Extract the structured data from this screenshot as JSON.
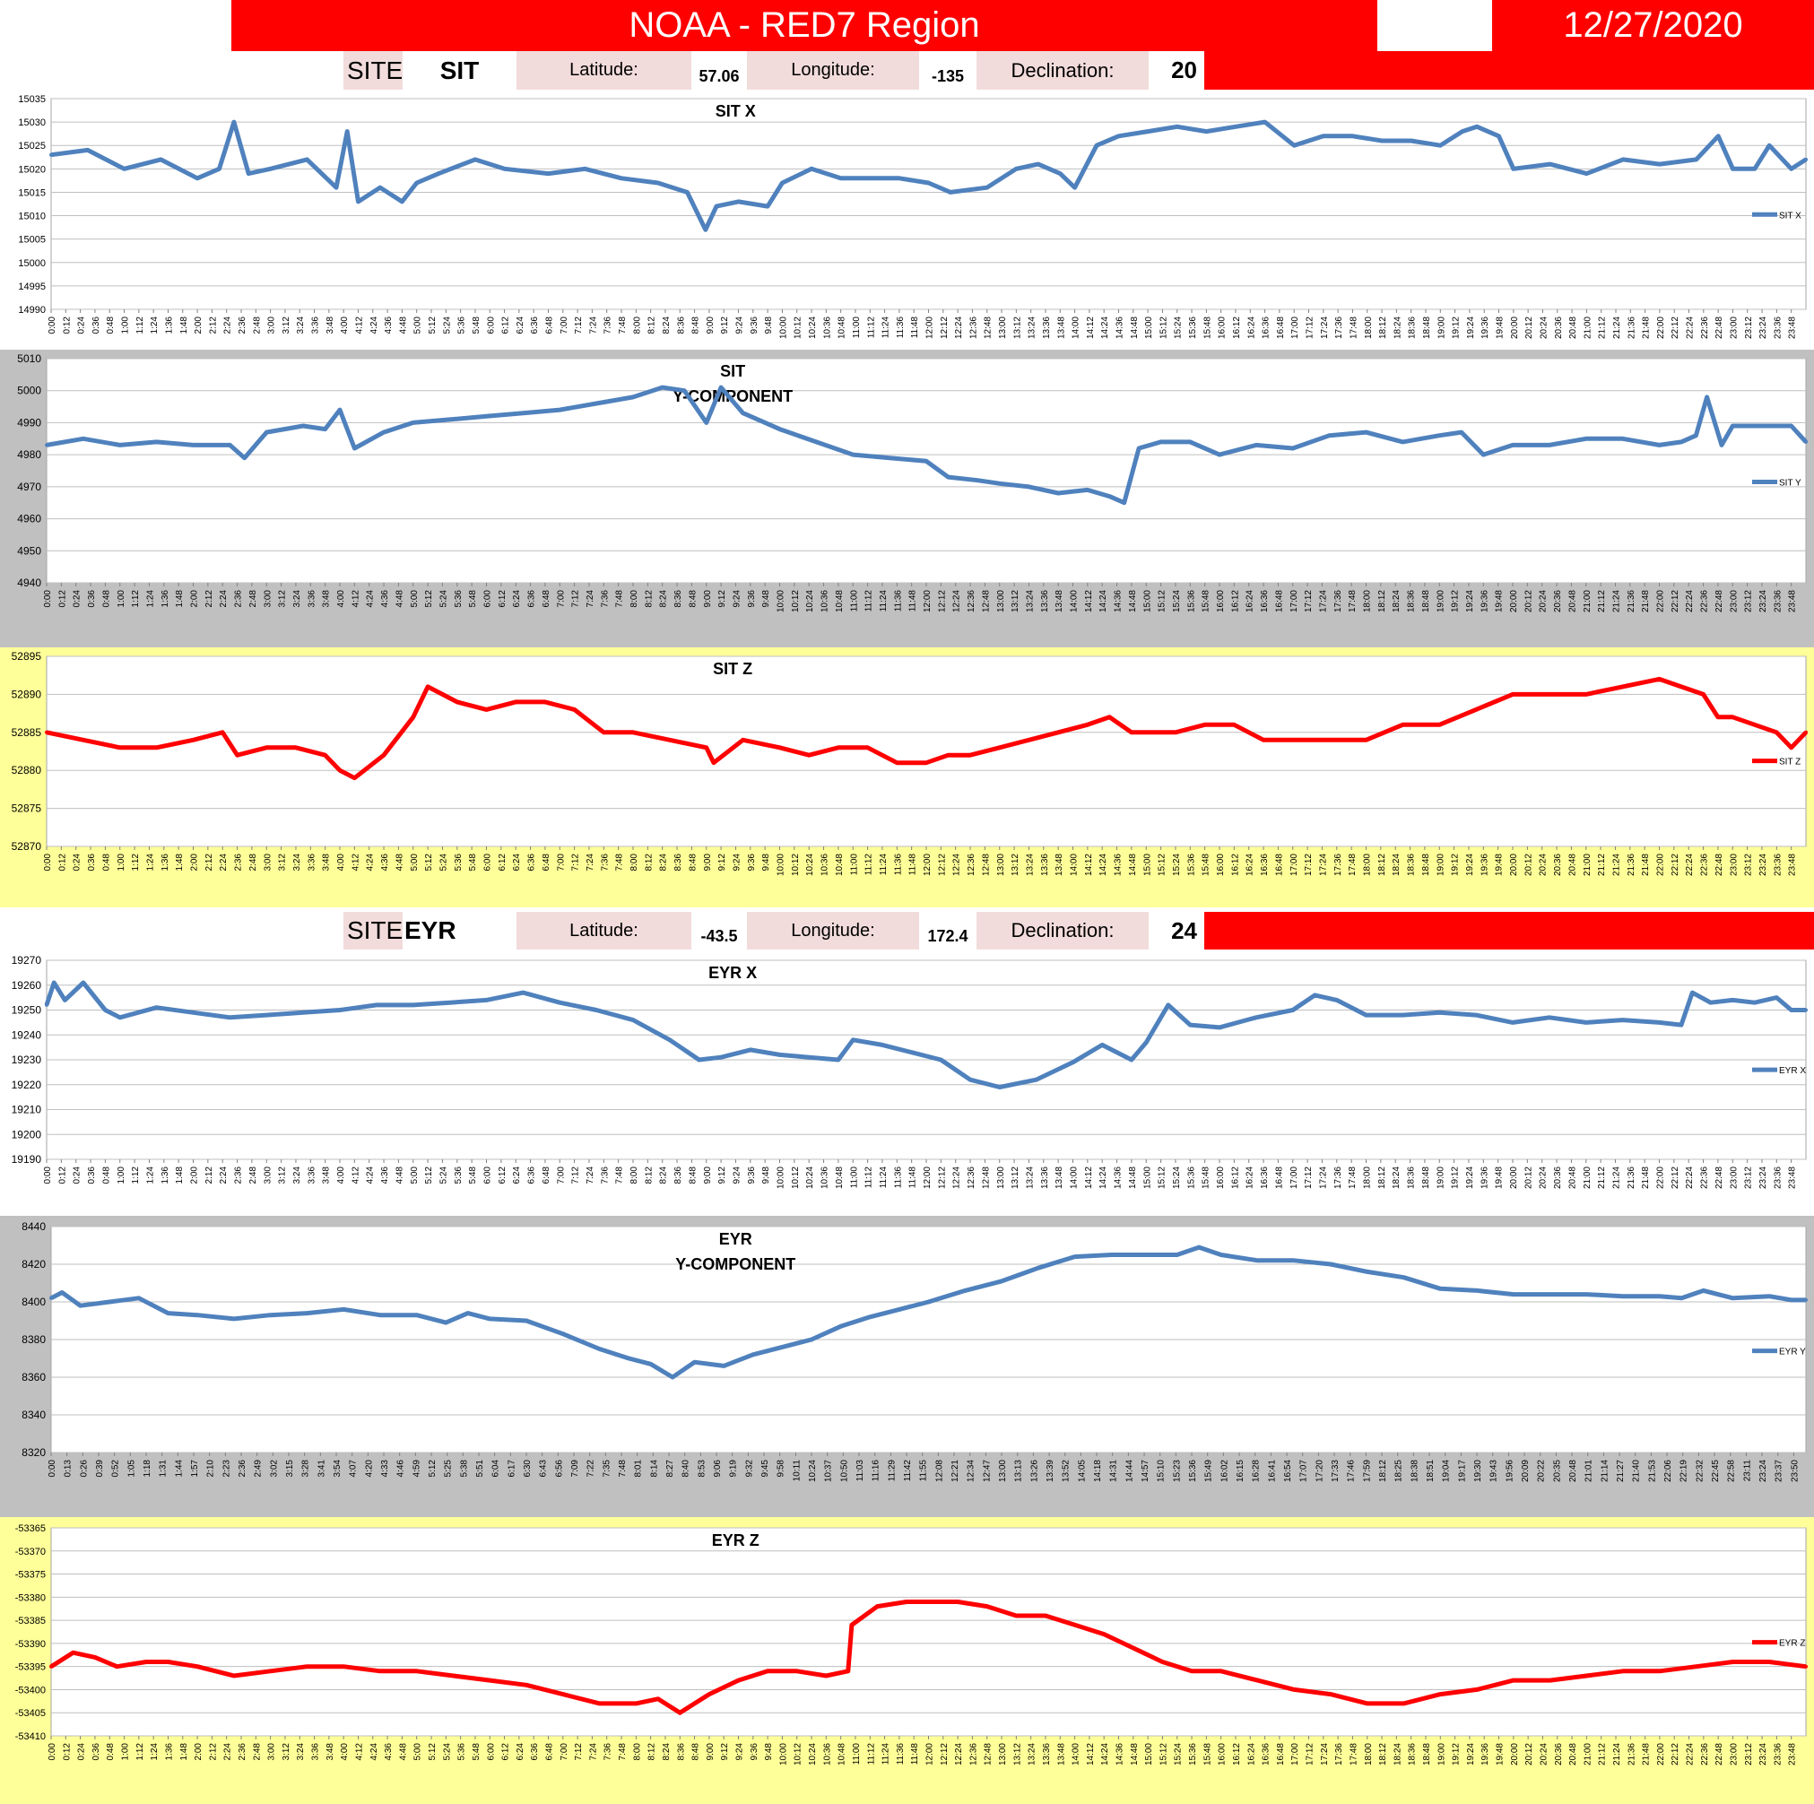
{
  "header": {
    "title": "NOAA - RED7 Region",
    "date": "12/27/2020"
  },
  "sites": [
    {
      "site_label": "SITE:",
      "site_code": "SIT",
      "latitude_label": "Latitude:",
      "latitude": "57.06",
      "longitude_label": "Longitude:",
      "longitude": "-135",
      "declination_label": "Declination:",
      "declination": "20"
    },
    {
      "site_label": "SITE:",
      "site_code": "EYR",
      "latitude_label": "Latitude:",
      "latitude": "-43.5",
      "longitude_label": "Longitude:",
      "longitude": "172.4",
      "declination_label": "Declination:",
      "declination": "24"
    }
  ],
  "colors": {
    "header_red": "#ff0000",
    "label_pink": "#f2dcdb",
    "series_blue": "#4f81bd",
    "series_red": "#ff0000",
    "panel_gray": "#c0c0c0",
    "panel_yellow": "#ffff99"
  },
  "chart_data": [
    {
      "type": "line",
      "title": "SIT X",
      "legend": "SIT X",
      "legend_position": "right",
      "color": "#4f81bd",
      "ylim": [
        14990,
        15035
      ],
      "yticks": [
        14990,
        14995,
        15000,
        15005,
        15010,
        15015,
        15020,
        15025,
        15030,
        15035
      ],
      "xtick_start_min": 0,
      "xtick_step_min": 12,
      "x_hours": [
        0,
        0.5,
        1,
        1.5,
        2,
        2.3,
        2.5,
        2.7,
        3,
        3.5,
        3.9,
        4.05,
        4.2,
        4.5,
        4.8,
        5,
        5.3,
        5.8,
        6.2,
        6.8,
        7.3,
        7.8,
        8.3,
        8.7,
        8.95,
        9.1,
        9.4,
        9.8,
        10,
        10.4,
        10.8,
        11.2,
        11.6,
        12,
        12.3,
        12.8,
        13.2,
        13.5,
        13.8,
        14,
        14.3,
        14.6,
        15,
        15.4,
        15.8,
        16.2,
        16.6,
        17,
        17.4,
        17.8,
        18.2,
        18.6,
        19,
        19.3,
        19.5,
        19.8,
        20,
        20.5,
        21,
        21.5,
        22,
        22.5,
        22.8,
        23,
        23.3,
        23.5,
        23.8,
        24
      ],
      "y": [
        15023,
        15024,
        15020,
        15022,
        15018,
        15020,
        15030,
        15019,
        15020,
        15022,
        15016,
        15028,
        15013,
        15016,
        15013,
        15017,
        15019,
        15022,
        15020,
        15019,
        15020,
        15018,
        15017,
        15015,
        15007,
        15012,
        15013,
        15012,
        15017,
        15020,
        15018,
        15018,
        15018,
        15017,
        15015,
        15016,
        15020,
        15021,
        15019,
        15016,
        15025,
        15027,
        15028,
        15029,
        15028,
        15029,
        15030,
        15025,
        15027,
        15027,
        15026,
        15026,
        15025,
        15028,
        15029,
        15027,
        15020,
        15021,
        15019,
        15022,
        15021,
        15022,
        15027,
        15020,
        15020,
        15025,
        15020,
        15022
      ],
      "xlabel": "",
      "ylabel": ""
    },
    {
      "type": "line",
      "title": "SIT\nY-COMPONENT",
      "legend": "SIT Y",
      "legend_position": "right",
      "color": "#4f81bd",
      "ylim": [
        4940,
        5010
      ],
      "yticks": [
        4940,
        4950,
        4960,
        4970,
        4980,
        4990,
        5000,
        5010
      ],
      "xtick_start_min": 0,
      "xtick_step_min": 12,
      "x_hours": [
        0,
        0.5,
        1,
        1.5,
        2,
        2.5,
        2.7,
        3,
        3.5,
        3.8,
        4.0,
        4.2,
        4.6,
        5,
        5.5,
        6,
        6.5,
        7,
        7.5,
        8,
        8.4,
        8.7,
        9,
        9.2,
        9.5,
        10,
        10.5,
        11,
        11.5,
        12,
        12.3,
        12.7,
        13,
        13.4,
        13.8,
        14.2,
        14.5,
        14.7,
        14.9,
        15.2,
        15.6,
        16,
        16.5,
        17,
        17.5,
        18,
        18.5,
        19,
        19.3,
        19.6,
        20,
        20.5,
        21,
        21.5,
        22,
        22.3,
        22.5,
        22.65,
        22.85,
        23,
        23.5,
        23.8,
        24
      ],
      "y": [
        4983,
        4985,
        4983,
        4984,
        4983,
        4983,
        4979,
        4987,
        4989,
        4988,
        4994,
        4982,
        4987,
        4990,
        4991,
        4992,
        4993,
        4994,
        4996,
        4998,
        5001,
        5000,
        4990,
        5001,
        4993,
        4988,
        4984,
        4980,
        4979,
        4978,
        4973,
        4972,
        4971,
        4970,
        4968,
        4969,
        4967,
        4965,
        4982,
        4984,
        4984,
        4980,
        4983,
        4982,
        4986,
        4987,
        4984,
        4986,
        4987,
        4980,
        4983,
        4983,
        4985,
        4985,
        4983,
        4984,
        4986,
        4998,
        4983,
        4989,
        4989,
        4989,
        4984
      ],
      "xlabel": "",
      "ylabel": ""
    },
    {
      "type": "line",
      "title": "SIT Z",
      "legend": "SIT Z",
      "legend_position": "right",
      "color": "#ff0000",
      "ylim": [
        52870,
        52895
      ],
      "yticks": [
        52870,
        52875,
        52880,
        52885,
        52890,
        52895
      ],
      "xtick_start_min": 0,
      "xtick_step_min": 12,
      "x_hours": [
        0,
        0.5,
        1,
        1.5,
        2,
        2.4,
        2.6,
        3,
        3.4,
        3.8,
        4.0,
        4.2,
        4.6,
        5,
        5.2,
        5.6,
        6,
        6.4,
        6.8,
        7.2,
        7.6,
        8,
        8.5,
        9,
        9.1,
        9.5,
        10,
        10.4,
        10.8,
        11.2,
        11.6,
        12,
        12.3,
        12.6,
        13,
        13.4,
        13.8,
        14.2,
        14.5,
        14.8,
        15,
        15.4,
        15.8,
        16.2,
        16.6,
        17,
        17.5,
        18,
        18.5,
        19,
        19.5,
        20,
        20.5,
        21,
        21.5,
        22,
        22.3,
        22.6,
        22.8,
        23,
        23.3,
        23.6,
        23.8,
        24
      ],
      "y": [
        52885,
        52884,
        52883,
        52883,
        52884,
        52885,
        52882,
        52883,
        52883,
        52882,
        52880,
        52879,
        52882,
        52887,
        52891,
        52889,
        52888,
        52889,
        52889,
        52888,
        52885,
        52885,
        52884,
        52883,
        52881,
        52884,
        52883,
        52882,
        52883,
        52883,
        52881,
        52881,
        52882,
        52882,
        52883,
        52884,
        52885,
        52886,
        52887,
        52885,
        52885,
        52885,
        52886,
        52886,
        52884,
        52884,
        52884,
        52884,
        52886,
        52886,
        52888,
        52890,
        52890,
        52890,
        52891,
        52892,
        52891,
        52890,
        52887,
        52887,
        52886,
        52885,
        52883,
        52885
      ],
      "xlabel": "",
      "ylabel": ""
    },
    {
      "type": "line",
      "title": "EYR X",
      "legend": "EYR X",
      "legend_position": "right",
      "color": "#4f81bd",
      "ylim": [
        19190,
        19270
      ],
      "yticks": [
        19190,
        19200,
        19210,
        19220,
        19230,
        19240,
        19250,
        19260,
        19270
      ],
      "xtick_start_min": 0,
      "xtick_step_min": 12,
      "x_hours": [
        0,
        0.1,
        0.25,
        0.5,
        0.8,
        1,
        1.5,
        2,
        2.5,
        3,
        3.5,
        4,
        4.5,
        5,
        5.5,
        6,
        6.5,
        7,
        7.5,
        8,
        8.5,
        8.9,
        9.2,
        9.6,
        10,
        10.4,
        10.8,
        11,
        11.4,
        11.8,
        12.2,
        12.6,
        13,
        13.5,
        14,
        14.4,
        14.8,
        15,
        15.3,
        15.6,
        16,
        16.5,
        17,
        17.3,
        17.6,
        18,
        18.5,
        19,
        19.5,
        20,
        20.5,
        21,
        21.5,
        22,
        22.3,
        22.45,
        22.7,
        23,
        23.3,
        23.6,
        23.8,
        24
      ],
      "y": [
        19252,
        19261,
        19254,
        19261,
        19250,
        19247,
        19251,
        19249,
        19247,
        19248,
        19249,
        19250,
        19252,
        19252,
        19253,
        19254,
        19257,
        19253,
        19250,
        19246,
        19238,
        19230,
        19231,
        19234,
        19232,
        19231,
        19230,
        19238,
        19236,
        19233,
        19230,
        19222,
        19219,
        19222,
        19229,
        19236,
        19230,
        19237,
        19252,
        19244,
        19243,
        19247,
        19250,
        19256,
        19254,
        19248,
        19248,
        19249,
        19248,
        19245,
        19247,
        19245,
        19246,
        19245,
        19244,
        19257,
        19253,
        19254,
        19253,
        19255,
        19250,
        19250
      ],
      "xlabel": "",
      "ylabel": ""
    },
    {
      "type": "line",
      "title": "EYR\nY-COMPONENT",
      "legend": "EYR Y",
      "legend_position": "right",
      "color": "#4f81bd",
      "ylim": [
        8320,
        8440
      ],
      "yticks": [
        8320,
        8340,
        8360,
        8380,
        8400,
        8420,
        8440
      ],
      "xtick_start_min": 0,
      "xtick_step_min": 13,
      "x_hours": [
        0,
        0.15,
        0.4,
        0.8,
        1.2,
        1.6,
        2,
        2.5,
        3,
        3.5,
        4,
        4.5,
        5,
        5.4,
        5.7,
        6,
        6.5,
        7,
        7.5,
        7.9,
        8.2,
        8.5,
        8.8,
        9.2,
        9.6,
        10,
        10.4,
        10.8,
        11.2,
        11.6,
        12,
        12.5,
        13,
        13.5,
        14,
        14.5,
        15,
        15.4,
        15.7,
        16,
        16.5,
        17,
        17.5,
        18,
        18.5,
        19,
        19.5,
        20,
        20.5,
        21,
        21.5,
        22,
        22.3,
        22.6,
        23,
        23.5,
        23.8,
        24
      ],
      "y": [
        8402,
        8405,
        8398,
        8400,
        8402,
        8394,
        8393,
        8391,
        8393,
        8394,
        8396,
        8393,
        8393,
        8389,
        8394,
        8391,
        8390,
        8383,
        8375,
        8370,
        8367,
        8360,
        8368,
        8366,
        8372,
        8376,
        8380,
        8387,
        8392,
        8396,
        8400,
        8406,
        8411,
        8418,
        8424,
        8425,
        8425,
        8425,
        8429,
        8425,
        8422,
        8422,
        8420,
        8416,
        8413,
        8407,
        8406,
        8404,
        8404,
        8404,
        8403,
        8403,
        8402,
        8406,
        8402,
        8403,
        8401,
        8401
      ],
      "xlabel": "",
      "ylabel": ""
    },
    {
      "type": "line",
      "title": "EYR Z",
      "legend": "EYR Z",
      "legend_position": "right",
      "color": "#ff0000",
      "ylim": [
        -53410,
        -53365
      ],
      "yticks": [
        -53410,
        -53405,
        -53400,
        -53395,
        -53390,
        -53385,
        -53380,
        -53375,
        -53370,
        -53365
      ],
      "xtick_start_min": 0,
      "xtick_step_min": 12,
      "x_hours": [
        0,
        0.3,
        0.6,
        0.9,
        1.3,
        1.6,
        2,
        2.5,
        3,
        3.5,
        4,
        4.5,
        5,
        5.5,
        6,
        6.5,
        7,
        7.5,
        8,
        8.3,
        8.6,
        9,
        9.4,
        9.8,
        10.2,
        10.6,
        10.9,
        10.95,
        11.3,
        11.7,
        12,
        12.4,
        12.8,
        13.2,
        13.6,
        14,
        14.4,
        14.8,
        15.2,
        15.6,
        16,
        16.5,
        17,
        17.5,
        18,
        18.5,
        19,
        19.5,
        20,
        20.5,
        21,
        21.5,
        22,
        22.5,
        23,
        23.5,
        24
      ],
      "y": [
        -53395,
        -53392,
        -53393,
        -53395,
        -53394,
        -53394,
        -53395,
        -53397,
        -53396,
        -53395,
        -53395,
        -53396,
        -53396,
        -53397,
        -53398,
        -53399,
        -53401,
        -53403,
        -53403,
        -53402,
        -53405,
        -53401,
        -53398,
        -53396,
        -53396,
        -53397,
        -53396,
        -53386,
        -53382,
        -53381,
        -53381,
        -53381,
        -53382,
        -53384,
        -53384,
        -53386,
        -53388,
        -53391,
        -53394,
        -53396,
        -53396,
        -53398,
        -53400,
        -53401,
        -53403,
        -53403,
        -53401,
        -53400,
        -53398,
        -53398,
        -53397,
        -53396,
        -53396,
        -53395,
        -53394,
        -53394,
        -53395
      ],
      "xlabel": "",
      "ylabel": ""
    }
  ]
}
